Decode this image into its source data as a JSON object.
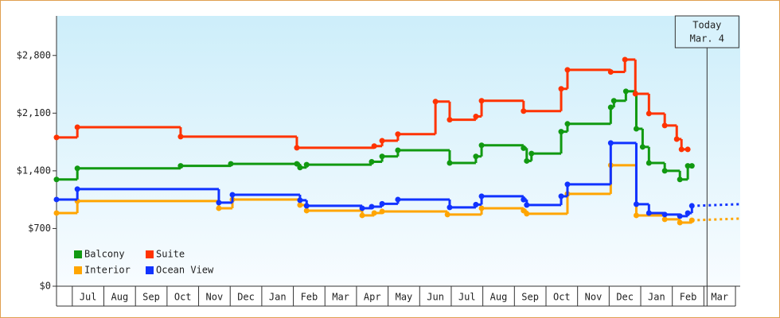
{
  "chart_data": {
    "type": "step-line",
    "today_label": "Today",
    "today_date": "Mar. 4",
    "today_x": 21.1,
    "xlim": [
      0.5,
      22.15
    ],
    "ylim": [
      0,
      3280
    ],
    "yticks": [
      {
        "value": 0,
        "label": "$0"
      },
      {
        "value": 700,
        "label": "$700"
      },
      {
        "value": 1400,
        "label": "$1,400"
      },
      {
        "value": 2100,
        "label": "$2,100"
      },
      {
        "value": 2800,
        "label": "$2,800"
      }
    ],
    "xticks": [
      {
        "value": 1,
        "label": "Jul"
      },
      {
        "value": 2,
        "label": "Aug"
      },
      {
        "value": 3,
        "label": "Sep"
      },
      {
        "value": 4,
        "label": "Oct"
      },
      {
        "value": 5,
        "label": "Nov"
      },
      {
        "value": 6,
        "label": "Dec"
      },
      {
        "value": 7,
        "label": "Jan"
      },
      {
        "value": 8,
        "label": "Feb"
      },
      {
        "value": 9,
        "label": "Mar"
      },
      {
        "value": 10,
        "label": "Apr"
      },
      {
        "value": 11,
        "label": "May"
      },
      {
        "value": 12,
        "label": "Jun"
      },
      {
        "value": 13,
        "label": "Jul"
      },
      {
        "value": 14,
        "label": "Aug"
      },
      {
        "value": 15,
        "label": "Sep"
      },
      {
        "value": 16,
        "label": "Oct"
      },
      {
        "value": 17,
        "label": "Nov"
      },
      {
        "value": 18,
        "label": "Dec"
      },
      {
        "value": 19,
        "label": "Jan"
      },
      {
        "value": 20,
        "label": "Feb"
      },
      {
        "value": 21,
        "label": "Mar"
      }
    ],
    "legend": "bottom-left",
    "series": [
      {
        "name": "Balcony",
        "color": "#119911",
        "x": [
          0.5,
          1.16,
          4.43,
          6.02,
          8.11,
          8.21,
          8.42,
          10.48,
          10.81,
          11.31,
          12.95,
          13.78,
          13.96,
          15.29,
          15.39,
          15.54,
          16.48,
          16.68,
          18.05,
          18.15,
          18.53,
          18.86,
          19.06,
          19.26,
          19.76,
          20.24,
          20.49,
          20.62
        ],
        "values": [
          1295,
          1430,
          1460,
          1485,
          1485,
          1440,
          1475,
          1510,
          1575,
          1650,
          1495,
          1575,
          1710,
          1675,
          1520,
          1610,
          1875,
          1970,
          2170,
          2250,
          2365,
          1910,
          1690,
          1495,
          1400,
          1295,
          1460,
          1460
        ]
      },
      {
        "name": "Suite",
        "color": "#ff3300",
        "x": [
          0.5,
          1.16,
          4.43,
          8.11,
          10.56,
          10.81,
          11.31,
          12.5,
          12.95,
          13.78,
          13.96,
          15.29,
          16.48,
          16.68,
          18.05,
          18.5,
          18.83,
          19.26,
          19.76,
          20.14,
          20.29,
          20.49
        ],
        "values": [
          1805,
          1930,
          1815,
          1680,
          1700,
          1765,
          1845,
          2240,
          2020,
          2060,
          2250,
          2125,
          2395,
          2625,
          2600,
          2750,
          2335,
          2095,
          1950,
          1785,
          1660,
          1660
        ]
      },
      {
        "name": "Interior",
        "color": "#ffa500",
        "x": [
          0.5,
          1.16,
          5.64,
          6.07,
          8.21,
          8.42,
          10.18,
          10.56,
          10.81,
          12.88,
          13.96,
          15.29,
          15.39,
          16.68,
          18.05,
          18.86,
          19.76,
          20.24,
          20.62
        ],
        "values": [
          888,
          1033,
          946,
          1052,
          985,
          917,
          859,
          888,
          907,
          869,
          946,
          917,
          879,
          1120,
          1468,
          859,
          811,
          772,
          800
        ],
        "forecast_x": [
          20.62,
          22.15
        ],
        "forecast_values": [
          800,
          820
        ]
      },
      {
        "name": "Ocean View",
        "color": "#1133ff",
        "x": [
          0.5,
          1.16,
          5.64,
          6.07,
          8.21,
          8.42,
          10.18,
          10.48,
          10.81,
          11.31,
          12.95,
          13.78,
          13.96,
          15.29,
          15.39,
          16.48,
          16.68,
          18.05,
          18.86,
          19.26,
          19.76,
          20.24,
          20.49,
          20.62
        ],
        "values": [
          1052,
          1178,
          1014,
          1110,
          1043,
          975,
          946,
          965,
          1000,
          1052,
          956,
          990,
          1091,
          1050,
          985,
          1091,
          1236,
          1738,
          995,
          888,
          870,
          850,
          888,
          975
        ],
        "forecast_x": [
          20.62,
          22.15
        ],
        "forecast_values": [
          975,
          995
        ]
      }
    ]
  }
}
